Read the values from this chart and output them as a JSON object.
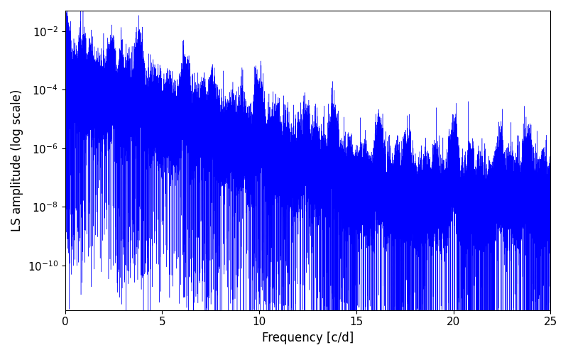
{
  "xlabel": "Frequency [c/d]",
  "ylabel": "LS amplitude (log scale)",
  "xlim": [
    0,
    25
  ],
  "ylim": [
    3e-12,
    0.05
  ],
  "line_color": "#0000ff",
  "background_color": "#ffffff",
  "xlabel_fontsize": 12,
  "ylabel_fontsize": 12,
  "tick_fontsize": 11,
  "figsize": [
    8.0,
    5.0
  ],
  "dpi": 100
}
